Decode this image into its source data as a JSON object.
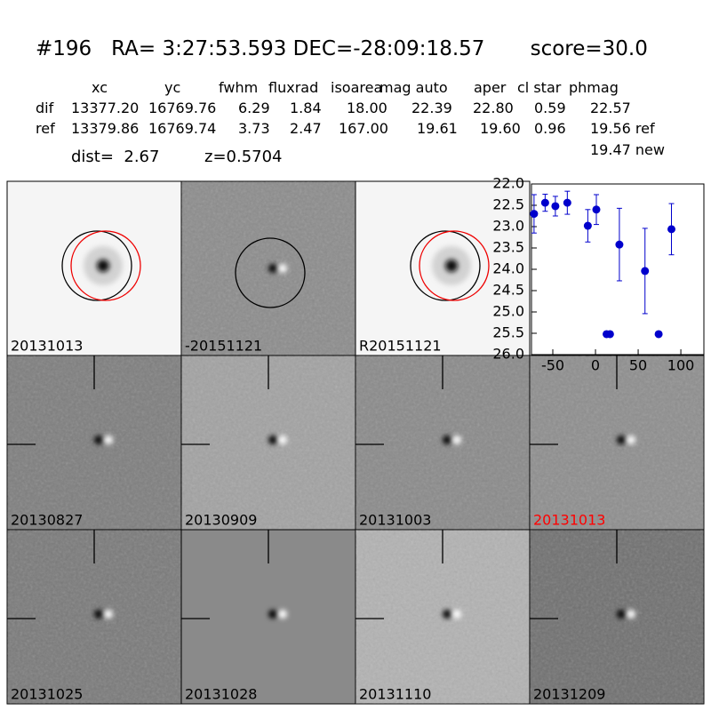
{
  "header": {
    "title": "#196   RA= 3:27:53.593 DEC=-28:09:18.57       score=30.0",
    "dist": "dist=  2.67",
    "z": "z=0.5704",
    "extra": "19.47 new"
  },
  "table": {
    "columns": [
      "xc",
      "yc",
      "fwhm",
      "fluxrad",
      "isoarea",
      "mag auto",
      "aper",
      "cl star",
      "phmag"
    ],
    "rows": [
      [
        "dif",
        "13377.20",
        "16769.76",
        "6.29",
        "1.84",
        "18.00",
        "22.39",
        "22.80",
        "0.59",
        "22.57"
      ],
      [
        "ref",
        "13379.86",
        "16769.74",
        "3.73",
        "2.47",
        "167.00",
        "19.61",
        "19.60",
        "0.96",
        "19.56 ref"
      ]
    ]
  },
  "panels": [
    {
      "label": "20131013"
    },
    {
      "label": "-20151121"
    },
    {
      "label": "R20151121"
    },
    {
      "label": "20130827"
    },
    {
      "label": "20130909"
    },
    {
      "label": "20131003"
    },
    {
      "label": "20131013",
      "color": "red"
    },
    {
      "label": "20131025"
    },
    {
      "label": "20131028"
    },
    {
      "label": "20131110"
    },
    {
      "label": "20131209"
    }
  ],
  "chart_data": {
    "type": "scatter",
    "x": [
      -72,
      -59,
      -47,
      -33,
      -9,
      1,
      13,
      17,
      28,
      58,
      74,
      89
    ],
    "values": [
      22.7,
      22.44,
      22.52,
      22.44,
      22.98,
      22.6,
      25.52,
      25.52,
      23.42,
      24.04,
      25.52,
      23.06
    ],
    "errors": [
      0.45,
      0.2,
      0.23,
      0.27,
      0.38,
      0.35,
      0.05,
      0.05,
      0.85,
      1.0,
      0.05,
      0.6
    ],
    "color": "#0000cc",
    "xlim": [
      -75,
      127
    ],
    "ylim": [
      26.0,
      22.0
    ],
    "xticks": [
      -50,
      0,
      50,
      100
    ],
    "yticks": [
      {
        "value": 22.0,
        "label": "22.0"
      },
      22.5,
      {
        "value": 23.0,
        "label": "23.0"
      },
      23.5,
      {
        "value": 24.0,
        "label": "24.0"
      },
      24.5,
      {
        "value": 25.0,
        "label": "25.0"
      },
      25.5,
      {
        "value": 26.0,
        "label": "26.0"
      }
    ]
  }
}
